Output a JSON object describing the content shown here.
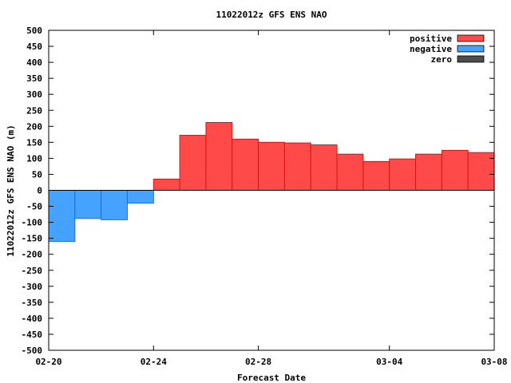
{
  "chart_data": {
    "type": "bar",
    "title": "11022012z GFS ENS NAO",
    "xlabel": "Forecast Date",
    "ylabel": "11022012z GFS ENS NAO (m)",
    "ylim": [
      -500,
      500
    ],
    "yticks": [
      500,
      450,
      400,
      350,
      300,
      250,
      200,
      150,
      100,
      50,
      0,
      -50,
      -100,
      -150,
      -200,
      -250,
      -300,
      -350,
      -400,
      -450,
      -500
    ],
    "xlim": [
      "02-20",
      "03-08"
    ],
    "xticks": [
      "02-20",
      "02-24",
      "02-28",
      "03-04",
      "03-08"
    ],
    "bar_width_days": 1,
    "x": [
      "02-20",
      "02-21",
      "02-22",
      "02-23",
      "02-24",
      "02-25",
      "02-26",
      "02-27",
      "02-28",
      "02-29",
      "03-01",
      "03-02",
      "03-03",
      "03-04",
      "03-05",
      "03-06",
      "03-07"
    ],
    "values": [
      -160,
      -88,
      -92,
      -40,
      35,
      172,
      212,
      160,
      150,
      148,
      142,
      113,
      90,
      98,
      113,
      125,
      118
    ],
    "grid": false,
    "legend": {
      "placement": "top-right",
      "entries": [
        {
          "label": "positive",
          "color": "#ff4a4a"
        },
        {
          "label": "negative",
          "color": "#45a3ff"
        },
        {
          "label": "zero",
          "color": "#4d4d4d"
        }
      ]
    },
    "colors": {
      "positive_fill": "#ff4a4a",
      "positive_edge": "#d81414",
      "negative_fill": "#45a3ff",
      "negative_edge": "#1a6fcc",
      "zero_fill": "#4d4d4d"
    }
  }
}
